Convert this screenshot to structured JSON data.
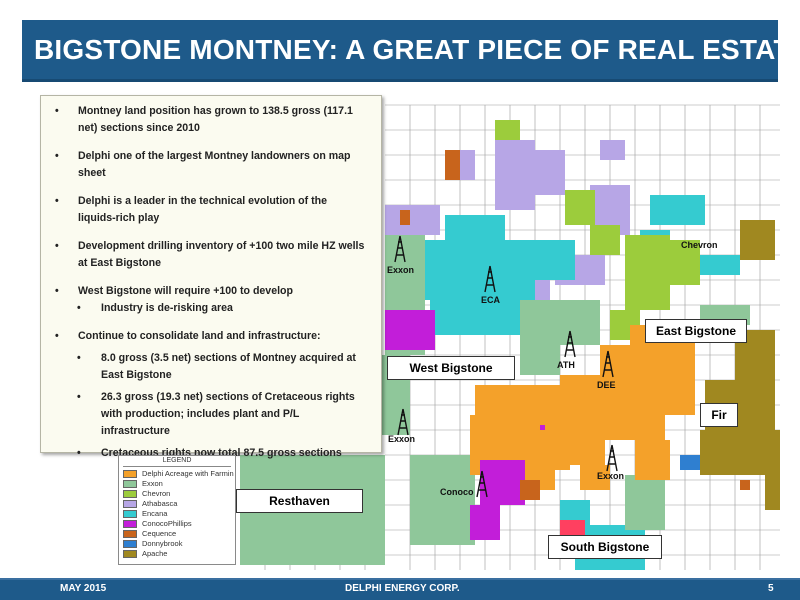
{
  "header": {
    "title": "BIGSTONE MONTNEY:  A GREAT PIECE OF REAL ESTATE"
  },
  "bullets": {
    "b1": "Montney land position has grown to 138.5 gross (117.1 net) sections since 2010",
    "b2": "Delphi one of the largest Montney landowners on map sheet",
    "b3": "Delphi is a leader in the technical evolution of the liquids-rich play",
    "b4": "Development drilling inventory of +100  two mile HZ wells at East Bigstone",
    "b5": "West Bigstone will require +100 to develop",
    "b5_sub1": "Industry is de-risking area",
    "b6": "Continue to consolidate land and infrastructure:",
    "b6_sub1": "8.0 gross (3.5 net) sections of Montney acquired at East Bigstone",
    "b6_sub2": "26.3 gross (19.3 net) sections of Cretaceous rights with production; includes plant and P/L infrastructure",
    "b6_sub3": "Cretaceous rights now total 87.5  gross sections"
  },
  "map_labels": {
    "east_bigstone": "East Bigstone",
    "west_bigstone": "West Bigstone",
    "fir": "Fir",
    "resthaven": "Resthaven",
    "south_bigstone": "South Bigstone"
  },
  "wells": {
    "exxon_nw": "Exxon",
    "eca": "ECA",
    "chevron": "Chevron",
    "ath": "ATH",
    "dee": "DEE",
    "exxon_w": "Exxon",
    "exxon_s": "Exxon",
    "conoco": "Conoco"
  },
  "legend": {
    "title": "LEGEND",
    "items": [
      {
        "label": "Delphi Acreage with Farmin",
        "color": "#f4a12a"
      },
      {
        "label": "Exxon",
        "color": "#8fc79a"
      },
      {
        "label": "Chevron",
        "color": "#9ccc3c"
      },
      {
        "label": "Athabasca",
        "color": "#b7a6e6"
      },
      {
        "label": "Encana",
        "color": "#35cbd0"
      },
      {
        "label": "ConocoPhillips",
        "color": "#c21ed9"
      },
      {
        "label": "Cequence",
        "color": "#c8641c"
      },
      {
        "label": "Donnybrook",
        "color": "#2f7fd0"
      },
      {
        "label": "Apache",
        "color": "#a08820"
      }
    ]
  },
  "footer": {
    "date": "MAY 2015",
    "company": "DELPHI ENERGY CORP.",
    "page": "5"
  },
  "colors": {
    "header_blue": "#1e5a8a",
    "delphi_orange": "#f4a12a",
    "exxon_green": "#8fc79a",
    "chevron_lime": "#9ccc3c",
    "athabasca_lavender": "#b7a6e6",
    "encana_cyan": "#35cbd0",
    "conoco_magenta": "#c21ed9",
    "cequence_brown": "#c8641c",
    "donnybrook_blue": "#2f7fd0",
    "apache_olive": "#a08820"
  }
}
